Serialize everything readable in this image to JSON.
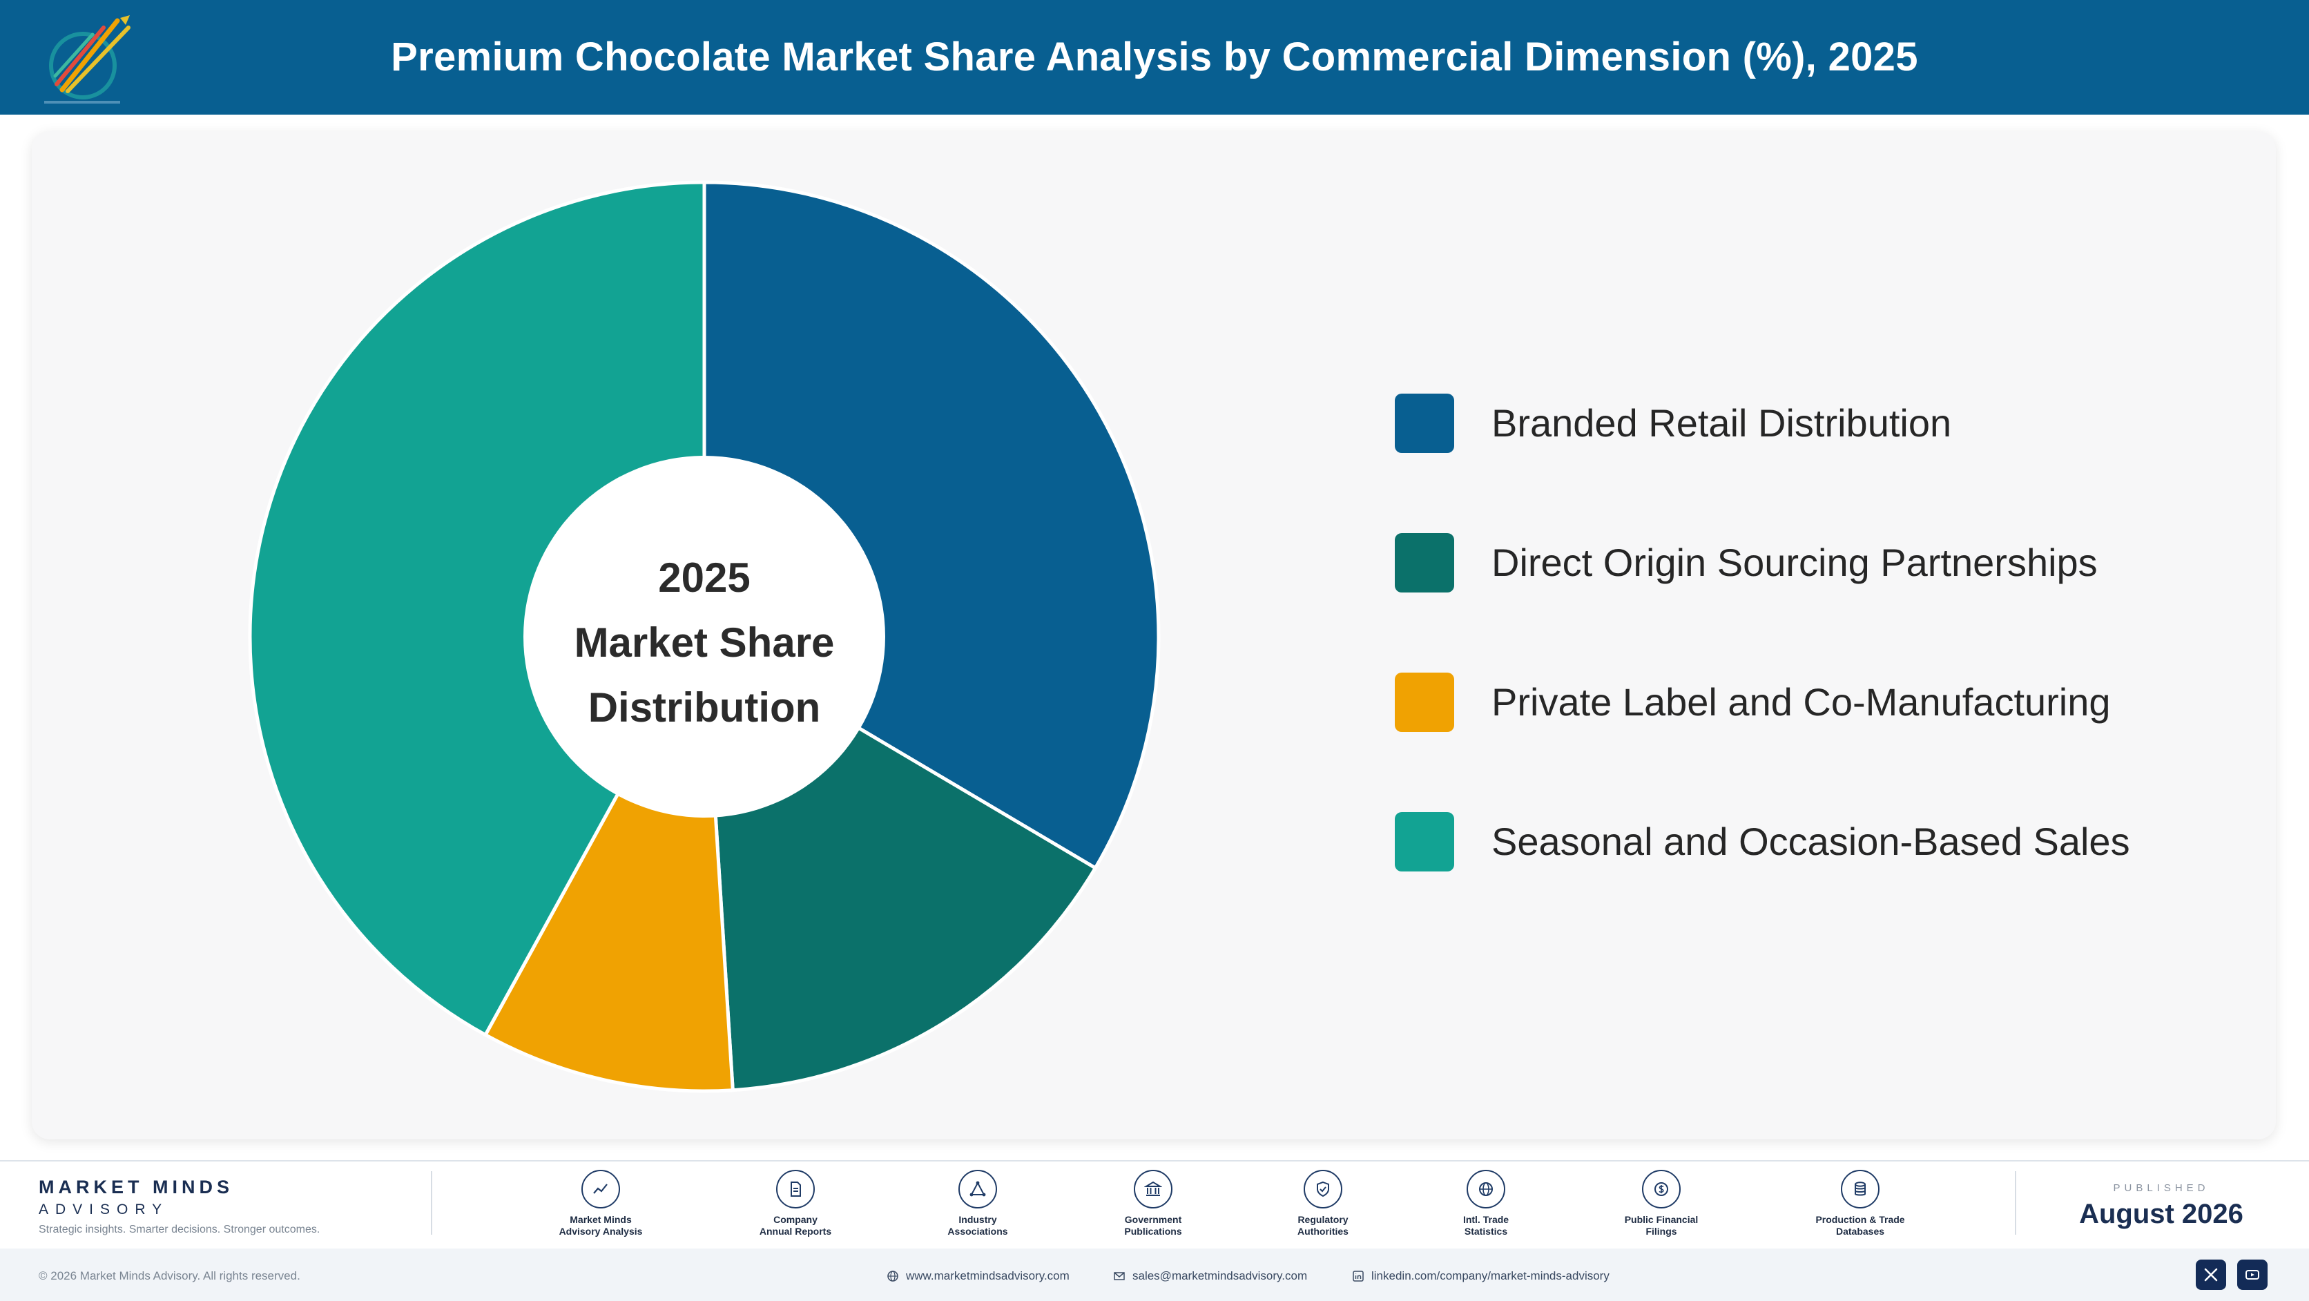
{
  "header": {
    "title": "Premium Chocolate Market Share Analysis by Commercial Dimension (%), 2025"
  },
  "chart_data": {
    "type": "pie",
    "variant": "donut",
    "center_label": [
      "2025",
      "Market Share",
      "Distribution"
    ],
    "categories": [
      "Branded Retail Distribution",
      "Direct Origin Sourcing Partnerships",
      "Private Label and Co-Manufacturing",
      "Seasonal and Occasion-Based Sales"
    ],
    "values": [
      33.5,
      15.5,
      9,
      42
    ],
    "colors": [
      "#085f91",
      "#0b716a",
      "#f0a202",
      "#12a393"
    ],
    "legend_position": "right"
  },
  "footer": {
    "brand_name": "MARKET MINDS",
    "brand_sub": "ADVISORY",
    "tagline": "Strategic insights. Smarter decisions. Stronger outcomes.",
    "sources": [
      {
        "icon": "trend-chart-icon",
        "lines": [
          "Market Minds",
          "Advisory Analysis"
        ]
      },
      {
        "icon": "document-icon",
        "lines": [
          "Company",
          "Annual Reports"
        ]
      },
      {
        "icon": "network-icon",
        "lines": [
          "Industry",
          "Associations"
        ]
      },
      {
        "icon": "government-building-icon",
        "lines": [
          "Government",
          "Publications"
        ]
      },
      {
        "icon": "shield-check-icon",
        "lines": [
          "Regulatory",
          "Authorities"
        ]
      },
      {
        "icon": "globe-icon",
        "lines": [
          "Intl. Trade",
          "Statistics"
        ]
      },
      {
        "icon": "currency-icon",
        "lines": [
          "Public Financial",
          "Filings"
        ]
      },
      {
        "icon": "database-icon",
        "lines": [
          "Production & Trade",
          "Databases"
        ]
      }
    ],
    "published_label": "PUBLISHED",
    "published_date": "August 2026",
    "copyright": "© 2026 Market Minds Advisory. All rights reserved.",
    "website": "www.marketmindsadvisory.com",
    "email": "sales@marketmindsadvisory.com",
    "linkedin": "linkedin.com/company/market-minds-advisory"
  }
}
